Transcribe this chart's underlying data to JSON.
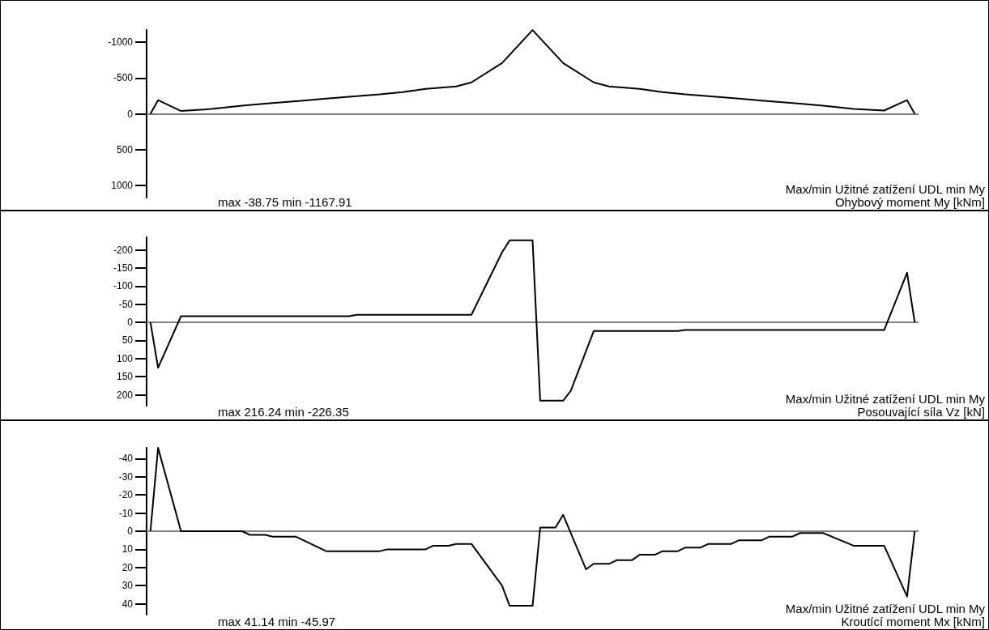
{
  "chart_data": [
    {
      "type": "line",
      "color": "#000000",
      "ylim": [
        1170,
        -1170
      ],
      "yticks": [
        -1000,
        -500,
        0,
        500,
        1000
      ],
      "tick_labels": "y",
      "grid": false,
      "categories": [
        null,
        null,
        null,
        null,
        null,
        null,
        null,
        null,
        null,
        null,
        null,
        null,
        null,
        null,
        null,
        null,
        null,
        null,
        null,
        null,
        null,
        null,
        null,
        null,
        null,
        null,
        null,
        null,
        null,
        null,
        null,
        null,
        null,
        null,
        null,
        null,
        null,
        null,
        null,
        null,
        null,
        null,
        null,
        null,
        null,
        null,
        null,
        null,
        null,
        null,
        null,
        null,
        null,
        null,
        null,
        null,
        null,
        null,
        null,
        null,
        null,
        null,
        null,
        null,
        null,
        null,
        null,
        null,
        null,
        null,
        null,
        null,
        null,
        null,
        null,
        null,
        null,
        null,
        null,
        null,
        null,
        null,
        null,
        null,
        null,
        null,
        null,
        null,
        null,
        null,
        null,
        null,
        null,
        null,
        null,
        null,
        null,
        null,
        null,
        null,
        null
      ],
      "values": [
        0,
        -190,
        null,
        null,
        -38.75,
        null,
        null,
        null,
        -67,
        null,
        null,
        null,
        -112,
        null,
        null,
        -140,
        null,
        null,
        null,
        null,
        -184,
        null,
        null,
        -213,
        null,
        null,
        null,
        -247,
        null,
        null,
        -270,
        null,
        null,
        -303,
        null,
        null,
        -348,
        null,
        null,
        null,
        -382,
        null,
        -438,
        null,
        null,
        null,
        -708,
        null,
        null,
        null,
        -1167.91,
        null,
        null,
        null,
        -708,
        null,
        null,
        null,
        -438,
        null,
        -382,
        null,
        null,
        null,
        -348,
        null,
        null,
        -303,
        null,
        null,
        -270,
        null,
        null,
        -247,
        null,
        null,
        null,
        -213,
        null,
        null,
        -184,
        null,
        null,
        null,
        null,
        -140,
        null,
        null,
        -112,
        null,
        null,
        null,
        -67,
        null,
        null,
        null,
        -45,
        null,
        null,
        -190,
        0
      ],
      "ref_lines": [
        {
          "axis": "y",
          "value": 0,
          "color": "#808080"
        }
      ],
      "annotations": [
        "max -38.75  min -1167.91",
        "Max/min Užitné zatížení UDL min My",
        "Ohybový moment My [kNm]"
      ]
    },
    {
      "type": "line",
      "color": "#000000",
      "ylim": [
        230,
        -235
      ],
      "yticks": [
        -200,
        -150,
        -100,
        -50,
        0,
        50,
        100,
        150,
        200
      ],
      "tick_labels": "y",
      "grid": false,
      "categories": [
        null,
        null,
        null,
        null,
        null,
        null,
        null,
        null,
        null,
        null,
        null,
        null,
        null,
        null,
        null,
        null,
        null,
        null,
        null,
        null,
        null,
        null,
        null,
        null,
        null,
        null,
        null,
        null,
        null,
        null,
        null,
        null,
        null,
        null,
        null,
        null,
        null,
        null,
        null,
        null,
        null,
        null,
        null,
        null,
        null,
        null,
        null,
        null,
        null,
        null,
        null,
        null,
        null,
        null,
        null,
        null,
        null,
        null,
        null,
        null,
        null,
        null,
        null,
        null,
        null,
        null,
        null,
        null,
        null,
        null,
        null,
        null,
        null,
        null,
        null,
        null,
        null,
        null,
        null,
        null,
        null,
        null,
        null,
        null,
        null,
        null,
        null,
        null,
        null,
        null,
        null,
        null,
        null,
        null,
        null,
        null,
        null,
        null,
        null,
        null,
        null
      ],
      "values": [
        0,
        125,
        null,
        null,
        -17,
        null,
        null,
        null,
        null,
        null,
        null,
        null,
        null,
        null,
        null,
        null,
        null,
        null,
        null,
        null,
        null,
        null,
        null,
        null,
        null,
        null,
        -17,
        -21,
        null,
        null,
        null,
        null,
        null,
        null,
        null,
        null,
        null,
        null,
        null,
        null,
        null,
        null,
        -21,
        null,
        null,
        null,
        -193,
        -226.35,
        null,
        null,
        -226.35,
        216.24,
        null,
        null,
        216.24,
        189,
        null,
        null,
        24,
        null,
        null,
        null,
        null,
        null,
        null,
        null,
        null,
        null,
        null,
        24,
        21,
        null,
        null,
        null,
        null,
        null,
        null,
        null,
        null,
        null,
        null,
        null,
        null,
        null,
        null,
        null,
        null,
        null,
        null,
        null,
        null,
        null,
        null,
        null,
        null,
        null,
        21,
        null,
        null,
        -137,
        0
      ],
      "ref_lines": [
        {
          "axis": "y",
          "value": 0,
          "color": "#808080"
        }
      ],
      "annotations": [
        "max 216.24  min -226.35",
        "Max/min Užitné zatížení UDL min My",
        "Posouvající síla Vz [kN]"
      ]
    },
    {
      "type": "line",
      "color": "#000000",
      "ylim": [
        46,
        -46
      ],
      "yticks": [
        -40,
        -30,
        -20,
        -10,
        0,
        10,
        20,
        30,
        40
      ],
      "tick_labels": "y",
      "grid": false,
      "categories": [
        null,
        null,
        null,
        null,
        null,
        null,
        null,
        null,
        null,
        null,
        null,
        null,
        null,
        null,
        null,
        null,
        null,
        null,
        null,
        null,
        null,
        null,
        null,
        null,
        null,
        null,
        null,
        null,
        null,
        null,
        null,
        null,
        null,
        null,
        null,
        null,
        null,
        null,
        null,
        null,
        null,
        null,
        null,
        null,
        null,
        null,
        null,
        null,
        null,
        null,
        null,
        null,
        null,
        null,
        null,
        null,
        null,
        null,
        null,
        null,
        null,
        null,
        null,
        null,
        null,
        null,
        null,
        null,
        null,
        null,
        null,
        null,
        null,
        null,
        null,
        null,
        null,
        null,
        null,
        null,
        null,
        null,
        null,
        null,
        null,
        null,
        null,
        null,
        null,
        null,
        null,
        null,
        null,
        null,
        null,
        null,
        null,
        null,
        null,
        null,
        null
      ],
      "values": [
        0,
        -45.97,
        null,
        null,
        0,
        null,
        null,
        null,
        null,
        null,
        null,
        null,
        0,
        2,
        null,
        2,
        3,
        null,
        null,
        3,
        null,
        null,
        null,
        11,
        null,
        null,
        null,
        null,
        null,
        null,
        11,
        10,
        null,
        null,
        null,
        null,
        10,
        8,
        null,
        8,
        7,
        null,
        7,
        null,
        null,
        null,
        30,
        41.14,
        null,
        null,
        41.14,
        -2,
        null,
        -2,
        -9,
        null,
        null,
        21,
        18,
        null,
        18,
        16,
        null,
        16,
        13,
        null,
        13,
        11,
        null,
        11,
        9,
        null,
        9,
        7,
        null,
        null,
        7,
        5,
        null,
        null,
        5,
        3,
        null,
        null,
        3,
        1,
        null,
        null,
        1,
        null,
        null,
        null,
        8,
        null,
        null,
        null,
        8,
        null,
        null,
        36,
        0
      ],
      "ref_lines": [
        {
          "axis": "y",
          "value": 0,
          "color": "#808080"
        }
      ],
      "annotations": [
        "max 41.14  min -45.97",
        "Max/min Užitné zatížení UDL min My",
        "Kroutící moment Mx [kNm]"
      ]
    }
  ]
}
